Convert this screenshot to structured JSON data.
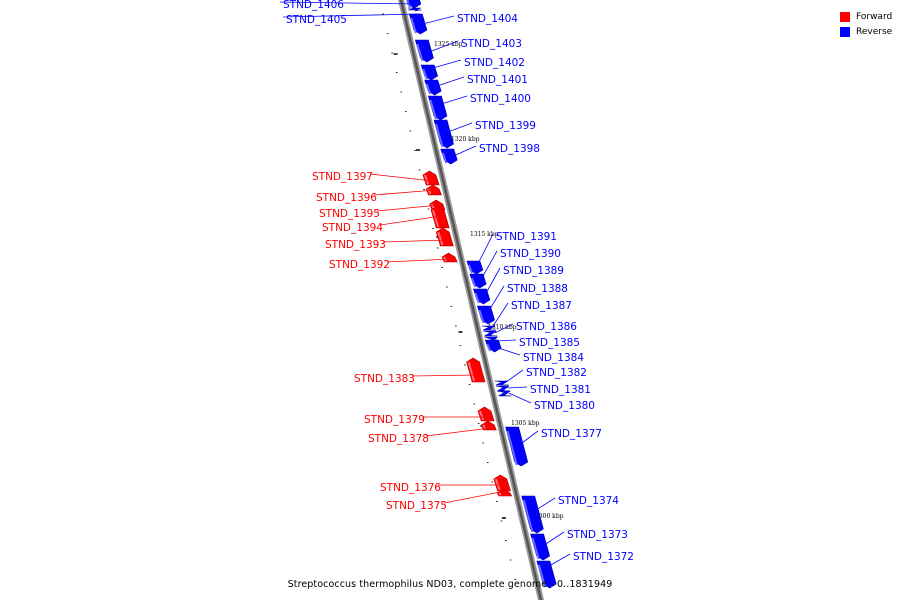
{
  "legend": {
    "forward_label": "Forward",
    "reverse_label": "Reverse",
    "forward_color": "#ff0000",
    "reverse_color": "#0000ff"
  },
  "caption": "Streptococcus thermophilus ND03, complete genome - 0..1831949",
  "scale_labels": [
    "1325 kbp",
    "1320 kbp",
    "1315 kbp",
    "1310 kbp",
    "1305 kbp",
    "1300 kbp"
  ],
  "genes": [
    {
      "name": "STND_1406",
      "strand": "reverse"
    },
    {
      "name": "STND_1405",
      "strand": "reverse"
    },
    {
      "name": "STND_1404",
      "strand": "reverse"
    },
    {
      "name": "STND_1403",
      "strand": "reverse"
    },
    {
      "name": "STND_1402",
      "strand": "reverse"
    },
    {
      "name": "STND_1401",
      "strand": "reverse"
    },
    {
      "name": "STND_1400",
      "strand": "reverse"
    },
    {
      "name": "STND_1399",
      "strand": "reverse"
    },
    {
      "name": "STND_1398",
      "strand": "reverse"
    },
    {
      "name": "STND_1397",
      "strand": "forward"
    },
    {
      "name": "STND_1396",
      "strand": "forward"
    },
    {
      "name": "STND_1395",
      "strand": "forward"
    },
    {
      "name": "STND_1394",
      "strand": "forward"
    },
    {
      "name": "STND_1393",
      "strand": "forward"
    },
    {
      "name": "STND_1392",
      "strand": "forward"
    },
    {
      "name": "STND_1391",
      "strand": "reverse"
    },
    {
      "name": "STND_1390",
      "strand": "reverse"
    },
    {
      "name": "STND_1389",
      "strand": "reverse"
    },
    {
      "name": "STND_1388",
      "strand": "reverse"
    },
    {
      "name": "STND_1387",
      "strand": "reverse"
    },
    {
      "name": "STND_1386",
      "strand": "reverse"
    },
    {
      "name": "STND_1385",
      "strand": "reverse"
    },
    {
      "name": "STND_1384",
      "strand": "reverse"
    },
    {
      "name": "STND_1383",
      "strand": "forward"
    },
    {
      "name": "STND_1382",
      "strand": "reverse"
    },
    {
      "name": "STND_1381",
      "strand": "reverse"
    },
    {
      "name": "STND_1380",
      "strand": "reverse"
    },
    {
      "name": "STND_1379",
      "strand": "forward"
    },
    {
      "name": "STND_1378",
      "strand": "forward"
    },
    {
      "name": "STND_1377",
      "strand": "reverse"
    },
    {
      "name": "STND_1376",
      "strand": "forward"
    },
    {
      "name": "STND_1375",
      "strand": "forward"
    },
    {
      "name": "STND_1374",
      "strand": "reverse"
    },
    {
      "name": "STND_1373",
      "strand": "reverse"
    },
    {
      "name": "STND_1372",
      "strand": "reverse"
    }
  ]
}
